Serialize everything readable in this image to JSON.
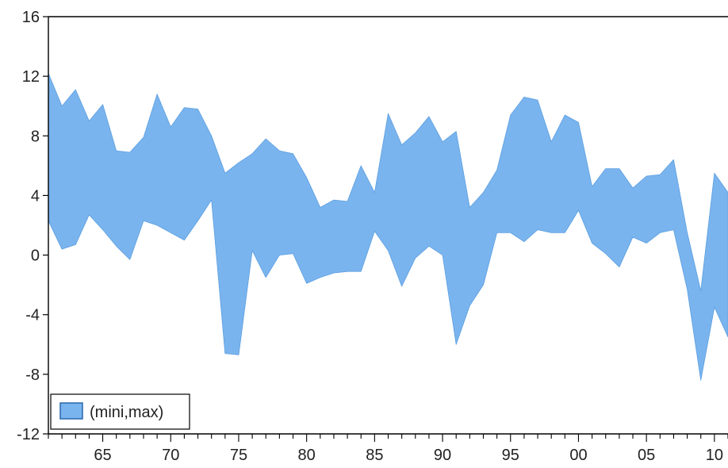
{
  "chart_data": {
    "type": "area",
    "title": "",
    "xlabel": "",
    "ylabel": "",
    "ylim": [
      -12,
      16
    ],
    "yticks": [
      16,
      12,
      8,
      4,
      0,
      -4,
      -8,
      -12
    ],
    "xlim": [
      1961,
      2011
    ],
    "xticks": [
      {
        "year": 1965,
        "label": "65"
      },
      {
        "year": 1970,
        "label": "70"
      },
      {
        "year": 1975,
        "label": "75"
      },
      {
        "year": 1980,
        "label": "80"
      },
      {
        "year": 1985,
        "label": "85"
      },
      {
        "year": 1990,
        "label": "90"
      },
      {
        "year": 1995,
        "label": "95"
      },
      {
        "year": 2000,
        "label": "00"
      },
      {
        "year": 2005,
        "label": "05"
      },
      {
        "year": 2010,
        "label": "10"
      }
    ],
    "x": [
      1961,
      1962,
      1963,
      1964,
      1965,
      1966,
      1967,
      1968,
      1969,
      1970,
      1971,
      1972,
      1973,
      1974,
      1975,
      1976,
      1977,
      1978,
      1979,
      1980,
      1981,
      1982,
      1983,
      1984,
      1985,
      1986,
      1987,
      1988,
      1989,
      1990,
      1991,
      1992,
      1993,
      1994,
      1995,
      1996,
      1997,
      1998,
      1999,
      2000,
      2001,
      2002,
      2003,
      2004,
      2005,
      2006,
      2007,
      2008,
      2009,
      2010,
      2011
    ],
    "series": [
      {
        "name": "(mini,max)",
        "color": "#7ab4ee",
        "edge_color": "#5a9ee0",
        "lower": [
          2.3,
          0.4,
          0.7,
          2.7,
          1.7,
          0.6,
          -0.3,
          2.3,
          2.0,
          1.5,
          1.0,
          2.3,
          3.7,
          -6.6,
          -6.7,
          0.3,
          -1.5,
          0.0,
          0.1,
          -1.9,
          -1.5,
          -1.2,
          -1.1,
          -1.1,
          1.6,
          0.3,
          -2.1,
          -0.2,
          0.6,
          0.0,
          -6.0,
          -3.4,
          -2.0,
          1.5,
          1.5,
          0.9,
          1.7,
          1.5,
          1.5,
          3.0,
          0.8,
          0.1,
          -0.8,
          1.2,
          0.8,
          1.5,
          1.7,
          -2.3,
          -8.4,
          -3.5,
          -5.5
        ],
        "upper": [
          12.2,
          10.0,
          11.1,
          9.0,
          10.1,
          7.0,
          6.9,
          7.9,
          10.8,
          8.6,
          9.9,
          9.8,
          8.0,
          5.5,
          6.2,
          6.8,
          7.8,
          7.0,
          6.8,
          5.2,
          3.2,
          3.7,
          3.6,
          6.0,
          4.2,
          9.5,
          7.4,
          8.2,
          9.3,
          7.6,
          8.3,
          3.2,
          4.2,
          5.7,
          9.4,
          10.6,
          10.4,
          7.6,
          9.4,
          8.9,
          4.6,
          5.8,
          5.8,
          4.5,
          5.3,
          5.4,
          6.4,
          1.5,
          -2.4,
          5.5,
          4.2
        ]
      }
    ],
    "legend": {
      "position": "bottom-left",
      "label": "(mini,max)"
    },
    "grid": false
  }
}
